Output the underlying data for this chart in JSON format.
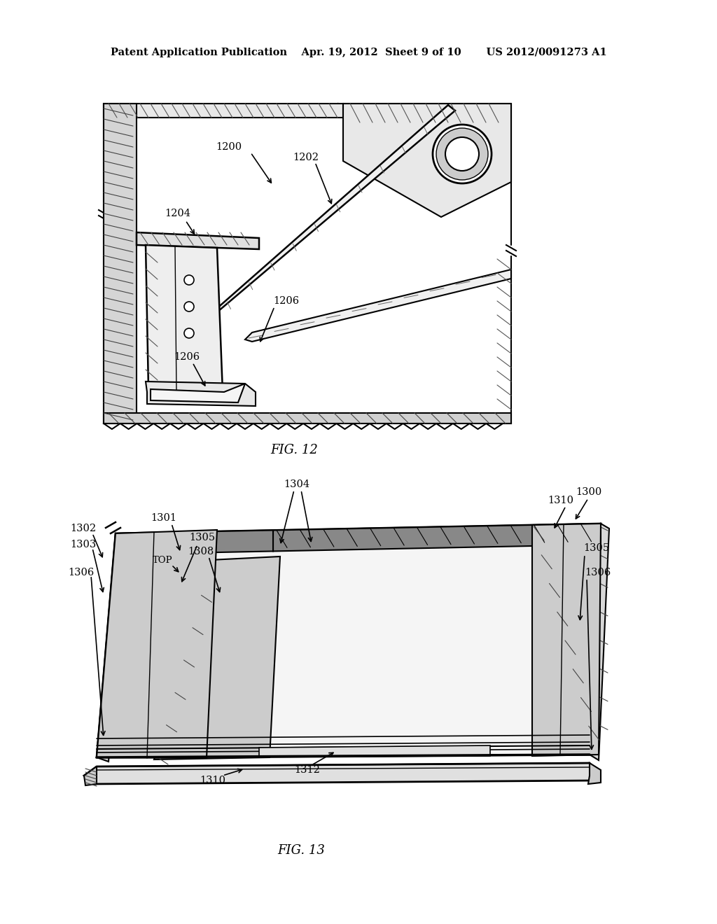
{
  "bg_color": "#ffffff",
  "header": "Patent Application Publication    Apr. 19, 2012  Sheet 9 of 10       US 2012/0091273 A1",
  "fig12_label": "FIG. 12",
  "fig13_label": "FIG. 13"
}
